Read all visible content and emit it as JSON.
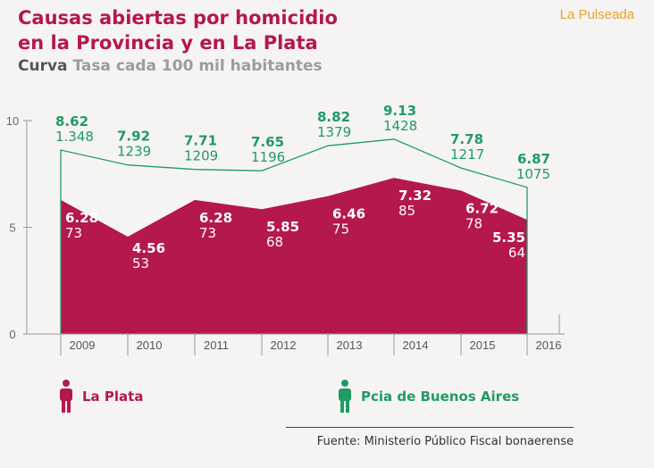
{
  "header": {
    "title_line1": "Causas abiertas por homicidio",
    "title_line2": "en la Provincia y en La Plata",
    "subtitle_dark": "Curva",
    "subtitle_light": "Tasa cada 100 mil habitantes",
    "brand": "La Pulseada"
  },
  "colors": {
    "la_plata": "#b5174f",
    "buenos_aires": "#1f9b64",
    "axis": "#9a9a9a"
  },
  "chart_data": {
    "type": "area",
    "categories": [
      "2009",
      "2010",
      "2011",
      "2012",
      "2013",
      "2014",
      "2015",
      "2016"
    ],
    "ylim": [
      0,
      10
    ],
    "yticks": [
      "0",
      "5",
      "10"
    ],
    "grid": false,
    "legend_position": "bottom-left",
    "series": [
      {
        "name": "Pcia de Buenos Aires",
        "style": "line",
        "values": [
          8.62,
          7.92,
          7.71,
          7.65,
          8.82,
          9.13,
          7.78,
          6.87
        ],
        "rate_labels": [
          "8.62",
          "7.92",
          "7.71",
          "7.65",
          "8.82",
          "9.13",
          "7.78",
          "6.87"
        ],
        "count_labels": [
          "1.348",
          "1239",
          "1209",
          "1196",
          "1379",
          "1428",
          "1217",
          "1075"
        ]
      },
      {
        "name": "La Plata",
        "style": "area",
        "values": [
          6.28,
          4.56,
          6.28,
          5.85,
          6.46,
          7.32,
          6.72,
          5.35
        ],
        "rate_labels": [
          "6.28",
          "4.56",
          "6.28",
          "5.85",
          "6.46",
          "7.32",
          "6.72",
          "5.35"
        ],
        "count_labels": [
          "73",
          "53",
          "73",
          "68",
          "75",
          "85",
          "78",
          "64"
        ]
      }
    ]
  },
  "legend": {
    "la_plata": "La Plata",
    "buenos_aires": "Pcia de Buenos Aires"
  },
  "source": "Fuente: Ministerio Público Fiscal bonaerense"
}
